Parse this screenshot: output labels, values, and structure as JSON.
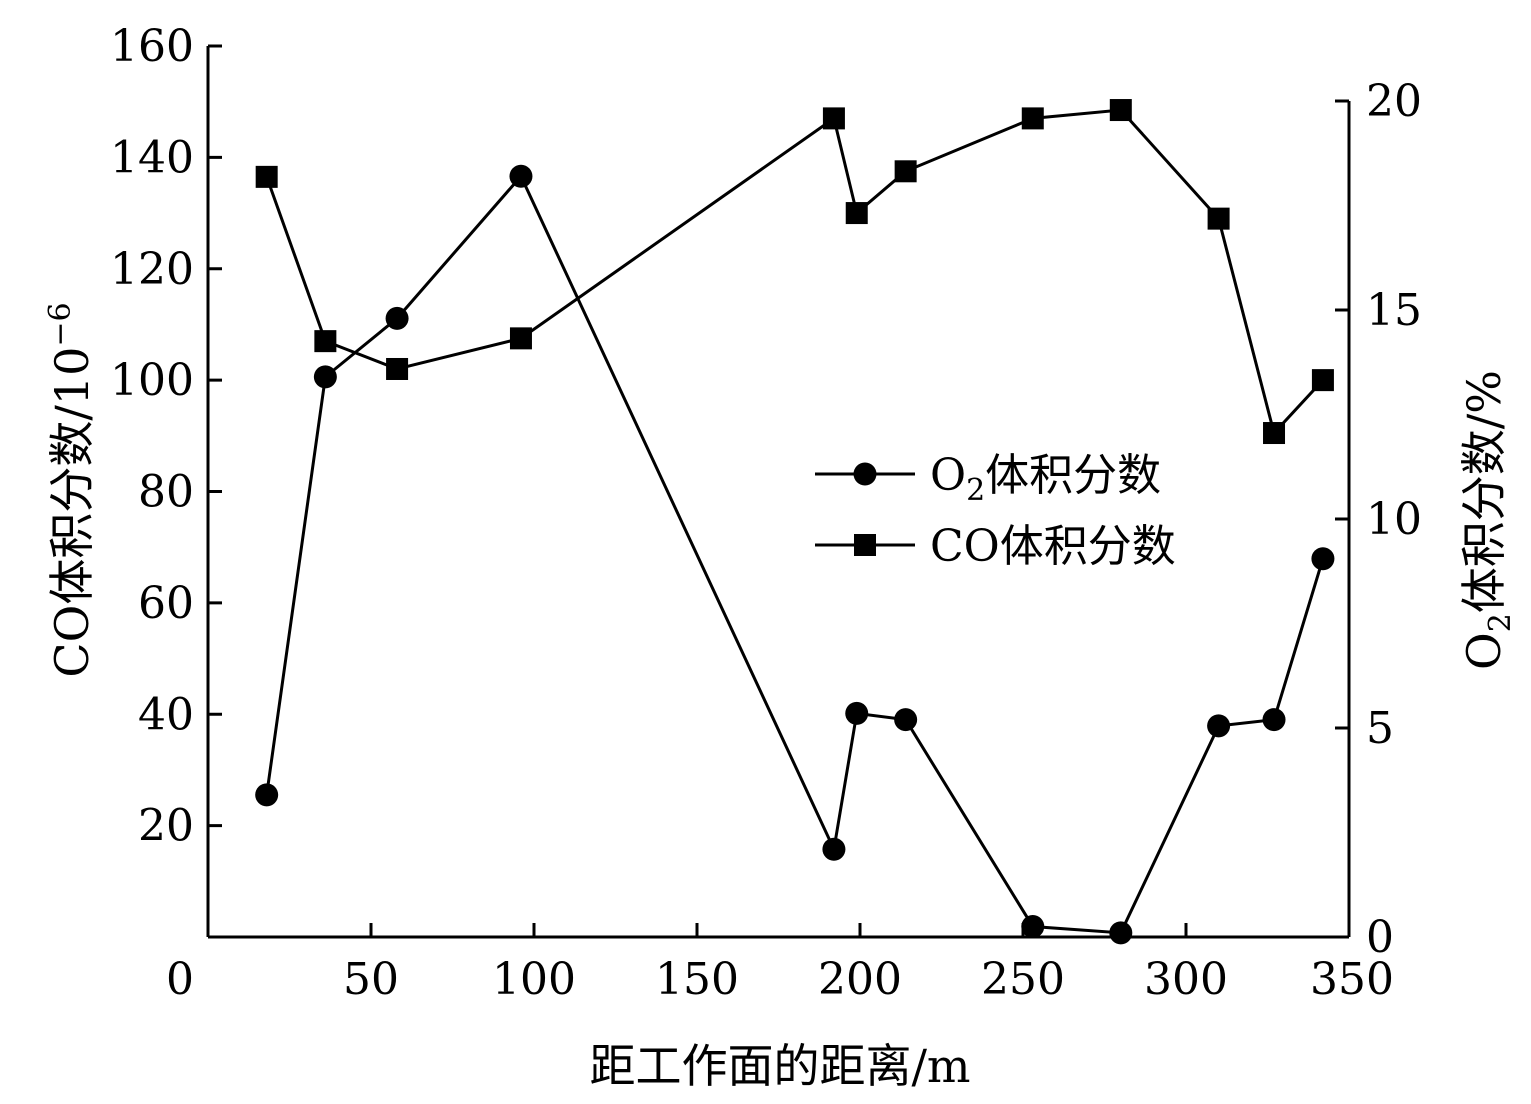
{
  "chart_data": {
    "type": "line",
    "xlabel": "距工作面的距离/m",
    "ylabel_left": {
      "prefix": "CO体积分数",
      "unit_base": "/10",
      "unit_exp": "−6"
    },
    "ylabel_right": {
      "prefix": "O",
      "sub": "2",
      "suffix": "体积分数/%"
    },
    "xlim": [
      0,
      350
    ],
    "ylim_left": [
      0,
      160
    ],
    "ylim_right": [
      0,
      20
    ],
    "xticks": [
      0,
      50,
      100,
      150,
      200,
      250,
      300,
      350
    ],
    "yticks_left": [
      20,
      40,
      60,
      80,
      100,
      120,
      140,
      160
    ],
    "yticks_right": [
      0,
      5,
      10,
      15,
      20
    ],
    "legend_position": "center-right",
    "series": [
      {
        "key": "o2",
        "legend": {
          "prefix": "O",
          "sub": "2",
          "suffix": "体积分数"
        },
        "axis": "right",
        "marker": "circle",
        "x": [
          18,
          36,
          58,
          96,
          192,
          199,
          214,
          253,
          280,
          310,
          327,
          342
        ],
        "y": [
          3.4,
          13.4,
          14.8,
          18.2,
          2.1,
          5.35,
          5.2,
          0.25,
          0.1,
          5.05,
          5.2,
          9.05
        ]
      },
      {
        "key": "co",
        "legend": {
          "text": "CO体积分数"
        },
        "axis": "left",
        "marker": "square",
        "x": [
          18,
          36,
          58,
          96,
          192,
          199,
          214,
          253,
          280,
          310,
          327,
          342
        ],
        "y": [
          136.5,
          107,
          102,
          107.5,
          147,
          130,
          137.5,
          147,
          148.5,
          129,
          90.5,
          100
        ]
      }
    ]
  }
}
